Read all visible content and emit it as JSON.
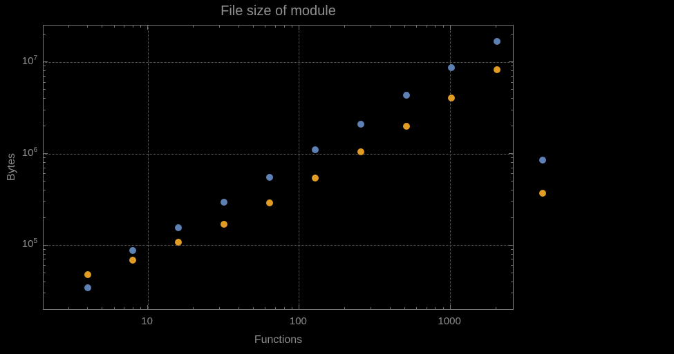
{
  "title": "File size of module",
  "chart_data": {
    "type": "scatter",
    "title": "File size of module",
    "xlabel": "Functions",
    "ylabel": "Bytes",
    "xscale": "log",
    "yscale": "log",
    "xlim": [
      2.05,
      2600
    ],
    "ylim": [
      20000,
      25000000
    ],
    "grid": true,
    "frame": true,
    "legend": "none",
    "x_ticks": [
      {
        "value": 10,
        "label": "10"
      },
      {
        "value": 100,
        "label": "100"
      },
      {
        "value": 1000,
        "label": "1000"
      }
    ],
    "y_ticks": [
      {
        "value": 100000,
        "base": "10",
        "exp": "5"
      },
      {
        "value": 1000000,
        "base": "10",
        "exp": "6"
      },
      {
        "value": 10000000,
        "base": "10",
        "exp": "7"
      }
    ],
    "x": [
      4,
      8,
      16,
      32,
      64,
      128,
      256,
      512,
      1024,
      2048,
      4096
    ],
    "series": [
      {
        "name": "series-blue",
        "color": "#5E81B5",
        "values": [
          34000,
          88000,
          155000,
          295000,
          550000,
          1100000,
          2100000,
          4300000,
          8700000,
          16800000,
          850000
        ]
      },
      {
        "name": "series-orange",
        "color": "#E19C24",
        "values": [
          48000,
          68000,
          108000,
          170000,
          290000,
          545000,
          1050000,
          2000000,
          4050000,
          8200000,
          370000
        ]
      }
    ],
    "colors": {
      "background": "#000000",
      "frame": "#767676",
      "gridline": "#686868",
      "text": "#8c8c8c"
    }
  }
}
